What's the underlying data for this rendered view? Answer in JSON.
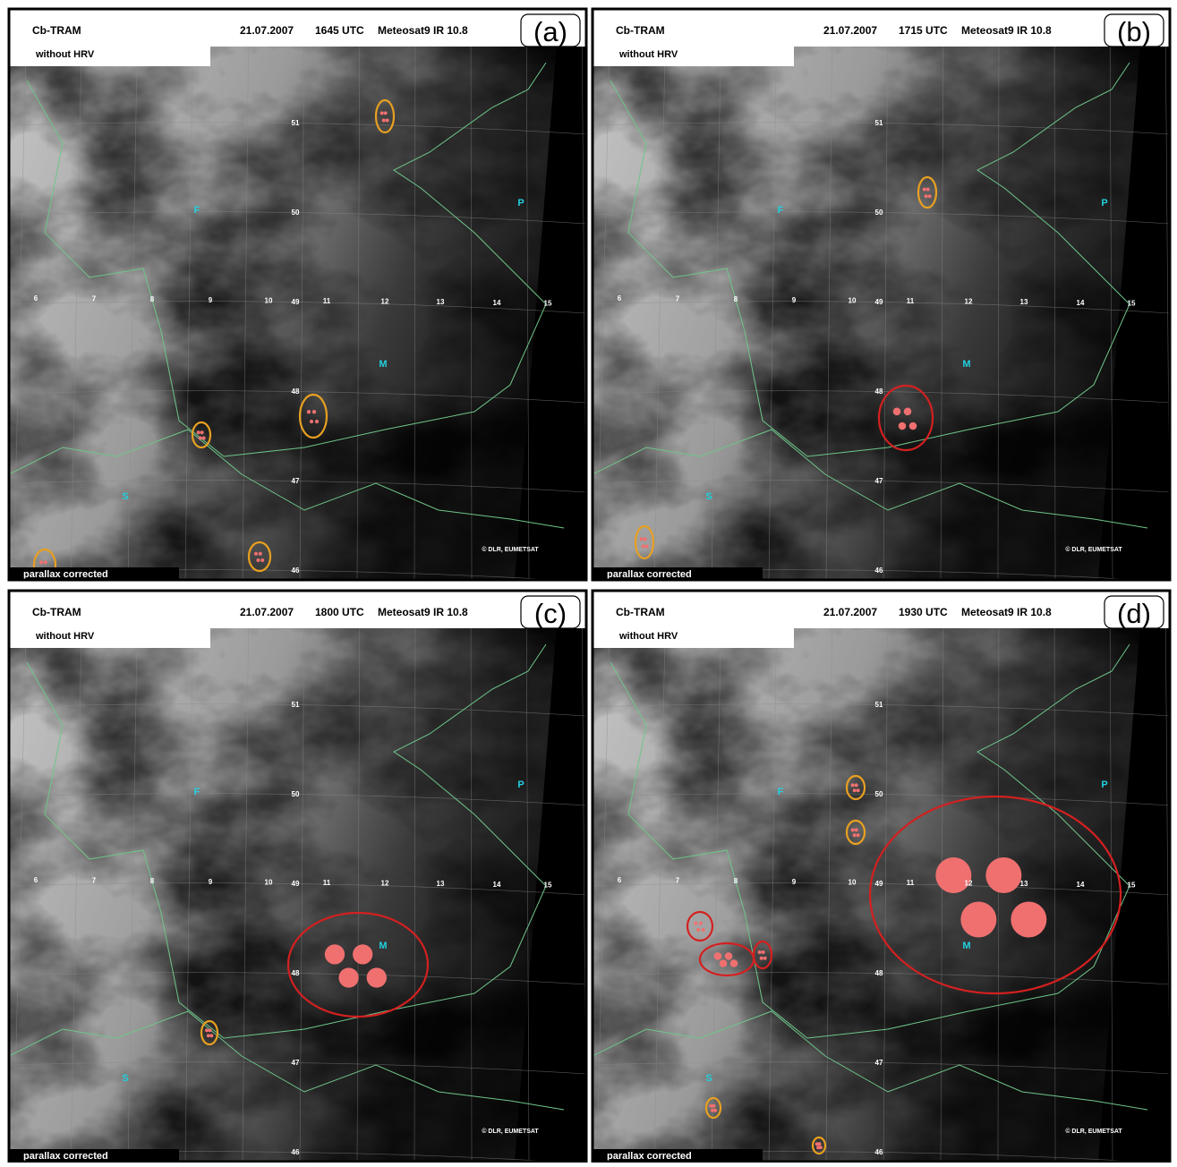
{
  "panels": [
    {
      "label": "(a)",
      "product": "Cb-TRAM",
      "date": "21.07.2007",
      "time": "1645 UTC",
      "sensor": "Meteosat9 IR 10.8",
      "note": "without HRV",
      "footer": "parallax corrected",
      "copyright": "© DLR, EUMETSAT"
    },
    {
      "label": "(b)",
      "product": "Cb-TRAM",
      "date": "21.07.2007",
      "time": "1715 UTC",
      "sensor": "Meteosat9 IR 10.8",
      "note": "without HRV",
      "footer": "parallax corrected",
      "copyright": "© DLR, EUMETSAT"
    },
    {
      "label": "(c)",
      "product": "Cb-TRAM",
      "date": "21.07.2007",
      "time": "1800 UTC",
      "sensor": "Meteosat9 IR 10.8",
      "note": "without HRV",
      "footer": "parallax corrected",
      "copyright": "© DLR, EUMETSAT"
    },
    {
      "label": "(d)",
      "product": "Cb-TRAM",
      "date": "21.07.2007",
      "time": "1930 UTC",
      "sensor": "Meteosat9 IR 10.8",
      "note": "without HRV",
      "footer": "parallax corrected",
      "copyright": "© DLR, EUMETSAT"
    }
  ],
  "map": {
    "places": [
      "F",
      "P",
      "M",
      "S"
    ],
    "latitudes": [
      "51",
      "50",
      "49",
      "48",
      "47",
      "46"
    ],
    "longitudes": [
      "6",
      "7",
      "8",
      "9",
      "10",
      "11",
      "12",
      "13",
      "14",
      "15"
    ]
  }
}
